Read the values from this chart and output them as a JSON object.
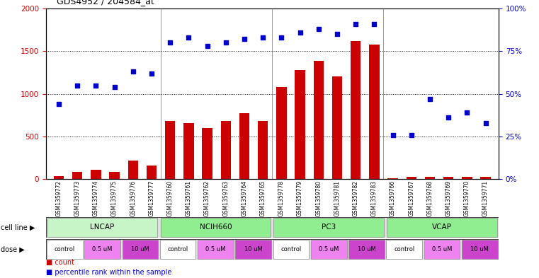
{
  "title": "GDS4952 / 204584_at",
  "samples": [
    "GSM1359772",
    "GSM1359773",
    "GSM1359774",
    "GSM1359775",
    "GSM1359776",
    "GSM1359777",
    "GSM1359760",
    "GSM1359761",
    "GSM1359762",
    "GSM1359763",
    "GSM1359764",
    "GSM1359765",
    "GSM1359778",
    "GSM1359779",
    "GSM1359780",
    "GSM1359781",
    "GSM1359782",
    "GSM1359783",
    "GSM1359766",
    "GSM1359767",
    "GSM1359768",
    "GSM1359769",
    "GSM1359770",
    "GSM1359771"
  ],
  "counts": [
    40,
    90,
    110,
    90,
    220,
    160,
    680,
    660,
    600,
    680,
    770,
    680,
    1080,
    1280,
    1390,
    1200,
    1620,
    1580,
    10,
    30,
    30,
    30,
    30,
    30
  ],
  "percentiles": [
    44,
    55,
    55,
    54,
    63,
    62,
    80,
    83,
    78,
    80,
    82,
    83,
    83,
    86,
    88,
    85,
    91,
    91,
    26,
    26,
    47,
    36,
    39,
    33
  ],
  "cell_lines": [
    {
      "label": "LNCAP",
      "start": 0,
      "end": 6,
      "color": "#c8f5c8"
    },
    {
      "label": "NCIH660",
      "start": 6,
      "end": 12,
      "color": "#90ee90"
    },
    {
      "label": "PC3",
      "start": 12,
      "end": 18,
      "color": "#90ee90"
    },
    {
      "label": "VCAP",
      "start": 18,
      "end": 24,
      "color": "#90ee90"
    }
  ],
  "doses": [
    {
      "label": "control",
      "start": 0,
      "end": 2,
      "color": "#ffffff"
    },
    {
      "label": "0.5 uM",
      "start": 2,
      "end": 4,
      "color": "#ee82ee"
    },
    {
      "label": "10 uM",
      "start": 4,
      "end": 6,
      "color": "#dd55dd"
    },
    {
      "label": "control",
      "start": 6,
      "end": 8,
      "color": "#ffffff"
    },
    {
      "label": "0.5 uM",
      "start": 8,
      "end": 10,
      "color": "#ee82ee"
    },
    {
      "label": "10 uM",
      "start": 10,
      "end": 12,
      "color": "#dd55dd"
    },
    {
      "label": "control",
      "start": 12,
      "end": 14,
      "color": "#ffffff"
    },
    {
      "label": "0.5 uM",
      "start": 14,
      "end": 16,
      "color": "#ee82ee"
    },
    {
      "label": "10 uM",
      "start": 16,
      "end": 18,
      "color": "#dd55dd"
    },
    {
      "label": "control",
      "start": 18,
      "end": 20,
      "color": "#ffffff"
    },
    {
      "label": "0.5 uM",
      "start": 20,
      "end": 22,
      "color": "#ee82ee"
    },
    {
      "label": "10 uM",
      "start": 22,
      "end": 24,
      "color": "#dd55dd"
    }
  ],
  "bar_color": "#cc0000",
  "dot_color": "#0000cc",
  "left_ylim": [
    0,
    2000
  ],
  "right_ylim": [
    0,
    100
  ],
  "left_yticks": [
    0,
    500,
    1000,
    1500,
    2000
  ],
  "right_yticks": [
    0,
    25,
    50,
    75,
    100
  ],
  "right_yticklabels": [
    "0%",
    "25%",
    "50%",
    "75%",
    "100%"
  ],
  "bg_color": "#ffffff",
  "label_row1": "cell line",
  "label_row2": "dose",
  "legend_count": "count",
  "legend_percentile": "percentile rank within the sample",
  "group_boundaries": [
    6,
    12,
    18
  ]
}
